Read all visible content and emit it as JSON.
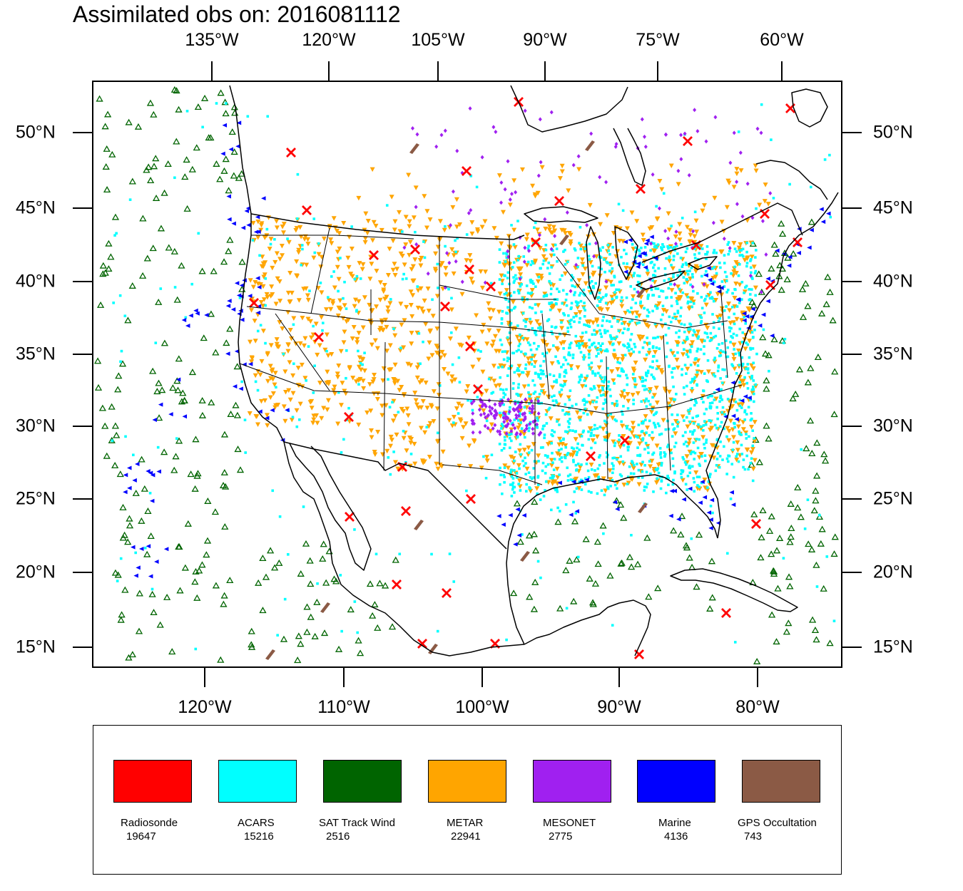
{
  "title": "Assimilated obs on: 2016081112",
  "axes": {
    "top_lon_labels": [
      "135°W",
      "120°W",
      "105°W",
      "90°W",
      "75°W",
      "60°W"
    ],
    "bottom_lon_labels": [
      "120°W",
      "110°W",
      "100°W",
      "90°W",
      "80°W"
    ],
    "lat_labels": [
      "50°N",
      "45°N",
      "40°N",
      "35°N",
      "30°N",
      "25°N",
      "20°N",
      "15°N"
    ]
  },
  "legend": [
    {
      "name": "Radiosonde",
      "count": "19647",
      "color": "#ff0000",
      "marker": "x-mark"
    },
    {
      "name": "ACARS",
      "count": "15216",
      "color": "#00ffff",
      "marker": "square-dot"
    },
    {
      "name": "SAT Track Wind",
      "count": "2516",
      "color": "#006400",
      "marker": "open-triangle-up"
    },
    {
      "name": "METAR",
      "count": "22941",
      "color": "#ffa500",
      "marker": "triangle-down"
    },
    {
      "name": "MESONET",
      "count": "2775",
      "color": "#a020f0",
      "marker": "diamond"
    },
    {
      "name": "Marine",
      "count": "4136",
      "color": "#0000ff",
      "marker": "triangle-left"
    },
    {
      "name": "GPS Occultation",
      "count": "743",
      "color": "#8b5a45",
      "marker": "streak"
    }
  ],
  "colors": {
    "frame": "#000000",
    "coast": "#000000",
    "background": "#ffffff"
  }
}
